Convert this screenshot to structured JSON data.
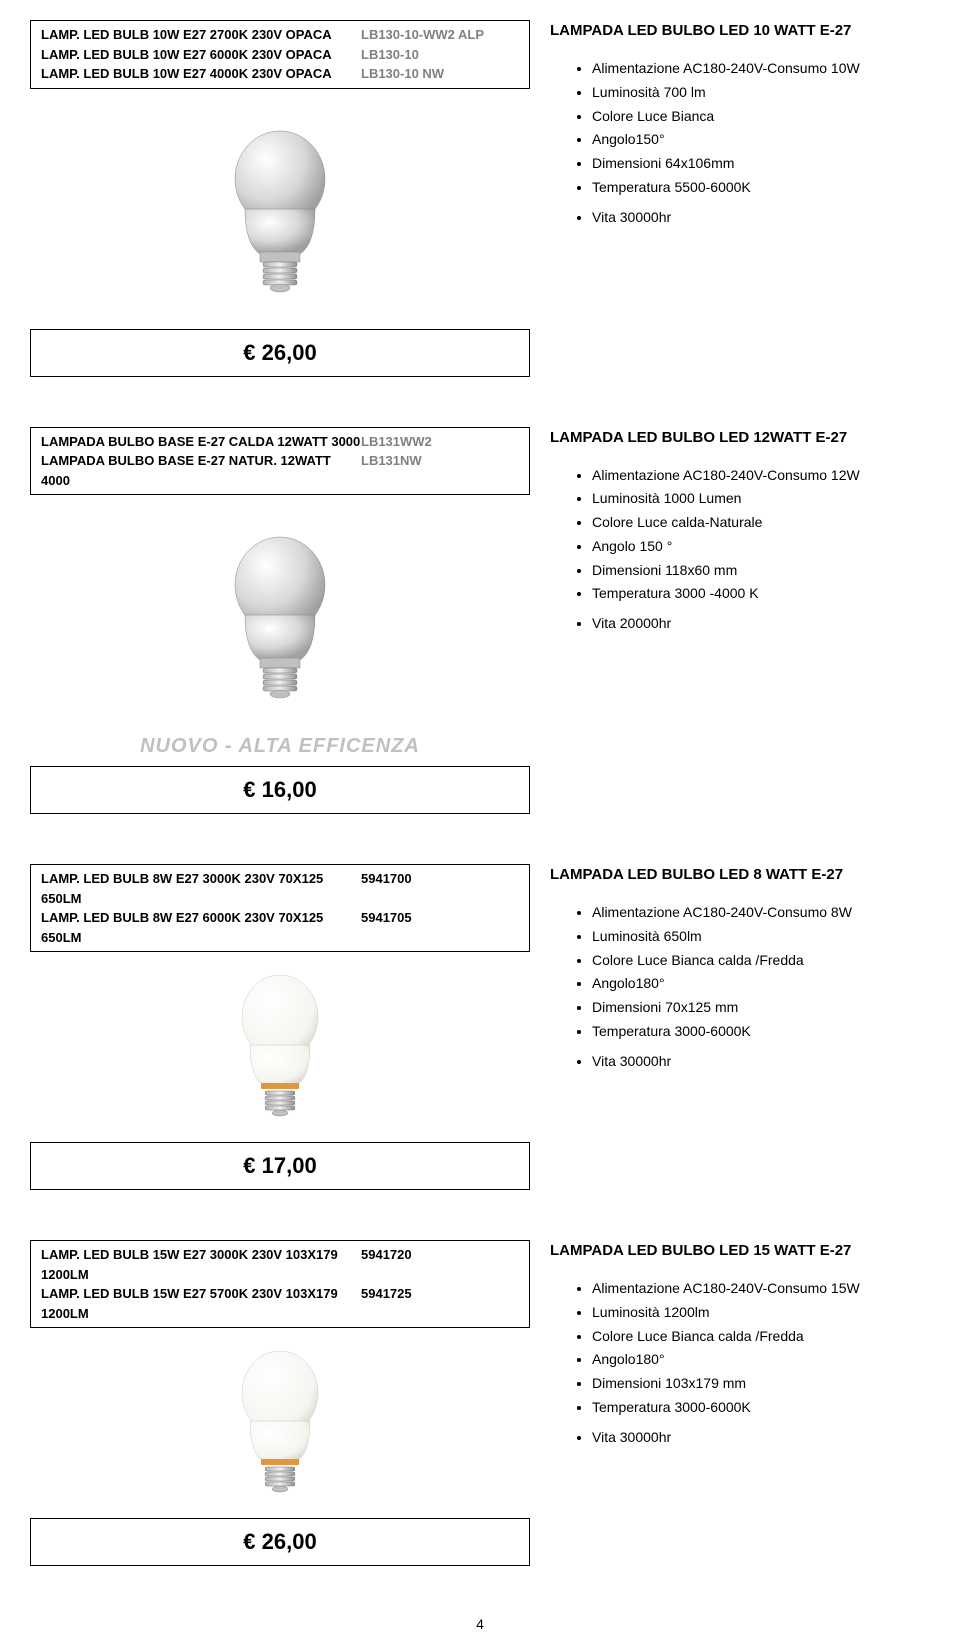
{
  "page_number": "4",
  "products": [
    {
      "headers": [
        {
          "desc": "LAMP. LED BULB 10W E27 2700K 230V OPACA",
          "code": "LB130-10-WW2 ALP",
          "code_color": "gray"
        },
        {
          "desc": "LAMP. LED BULB 10W E27 6000K 230V OPACA",
          "code": "LB130-10",
          "code_color": "gray"
        },
        {
          "desc": "LAMP. LED BULB 10W E27 4000K 230V OPACA",
          "code": "LB130-10 NW",
          "code_color": "gray"
        }
      ],
      "price": "€ 26,00",
      "title": "LAMPADA LED BULBO LED 10 WATT  E-27",
      "specs": [
        "Alimentazione  AC180-240V-Consumo 10W",
        "Luminosità 700 lm",
        "Colore Luce Bianca",
        "Angolo150°",
        "Dimensioni 64x106mm",
        "Temperatura 5500-6000K",
        "Vita 30000hr"
      ],
      "banner": "",
      "bulb_type": "silver"
    },
    {
      "headers": [
        {
          "desc": "LAMPADA BULBO BASE E-27 CALDA 12WATT 3000",
          "code": "LB131WW2",
          "code_color": "gray"
        },
        {
          "desc": "LAMPADA BULBO BASE E-27 NATUR. 12WATT 4000",
          "code": "LB131NW",
          "code_color": "gray"
        }
      ],
      "price": "€ 16,00",
      "title": "LAMPADA LED BULBO LED 12WATT E-27",
      "specs": [
        "Alimentazione AC180-240V-Consumo 12W",
        "Luminosità 1000 Lumen",
        "Colore Luce calda-Naturale",
        "Angolo 150 °",
        "Dimensioni 118x60 mm",
        "Temperatura 3000 -4000 K",
        "Vita 20000hr"
      ],
      "banner": "NUOVO - ALTA EFFICENZA",
      "bulb_type": "silver"
    },
    {
      "headers": [
        {
          "desc": "LAMP. LED BULB 8W E27 3000K 230V 70X125  650LM",
          "code": "5941700",
          "code_color": "black"
        },
        {
          "desc": "LAMP. LED BULB 8W E27 6000K 230V 70X125  650LM",
          "code": "5941705",
          "code_color": "black"
        }
      ],
      "price": "€ 17,00",
      "title": "LAMPADA LED BULBO LED 8 WATT E-27",
      "specs": [
        "Alimentazione AC180-240V-Consumo 8W",
        "Luminosità 650lm",
        "Colore Luce Bianca  calda /Fredda",
        "Angolo180°",
        "Dimensioni 70x125 mm",
        "Temperatura 3000-6000K",
        "Vita 30000hr"
      ],
      "banner": "",
      "bulb_type": "white"
    },
    {
      "headers": [
        {
          "desc": "LAMP. LED BULB 15W E27 3000K 230V 103X179 1200LM",
          "code": "5941720",
          "code_color": "black"
        },
        {
          "desc": "LAMP. LED BULB 15W E27 5700K 230V 103X179 1200LM",
          "code": "5941725",
          "code_color": "black"
        }
      ],
      "price": "€ 26,00",
      "title": "LAMPADA LED BULBO LED 15 WATT E-27",
      "specs": [
        "Alimentazione AC180-240V-Consumo 15W",
        "Luminosità 1200lm",
        "Colore Luce Bianca  calda /Fredda",
        "Angolo180°",
        "Dimensioni 103x179 mm",
        "Temperatura 3000-6000K",
        "Vita 30000hr"
      ],
      "banner": "",
      "bulb_type": "white"
    }
  ]
}
